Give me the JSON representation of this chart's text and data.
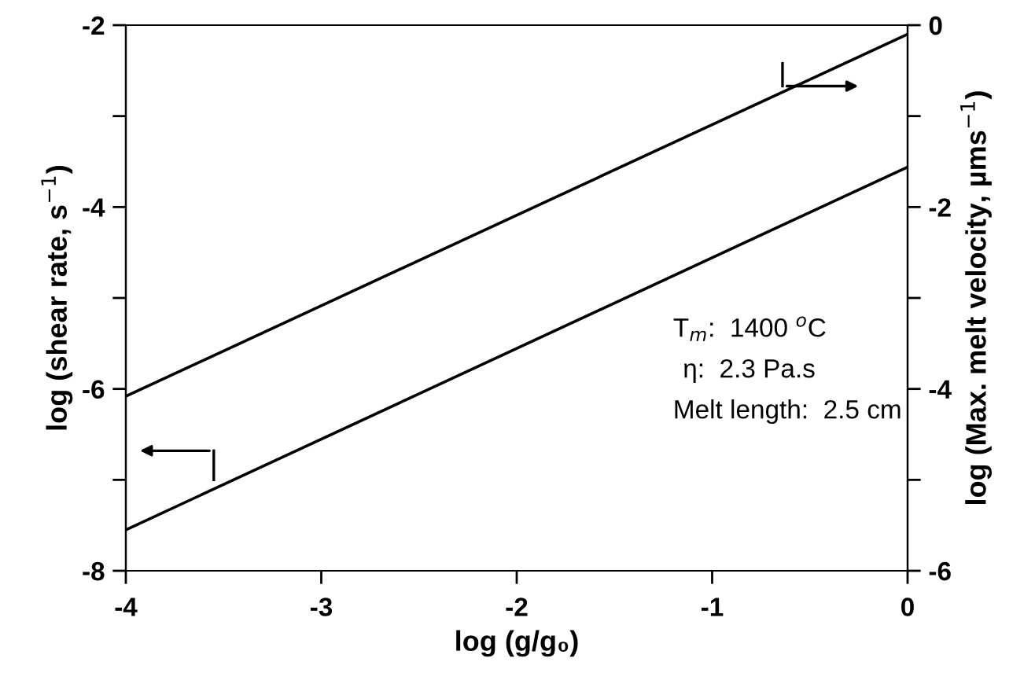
{
  "chart_data": {
    "type": "line",
    "xlabel": "log (g/g₀)",
    "ylabel": "log (shear rate, s$^{−1}$)",
    "y2label": "log (Max. melt velocity, µms$^{−1}$)",
    "x": [
      -4,
      0
    ],
    "series": [
      {
        "color": "#000000",
        "values": [
          -7.55,
          -3.56
        ]
      },
      {
        "color": "#000000",
        "values": [
          -4.08,
          -0.1
        ],
        "axis": "y2"
      }
    ],
    "xlim": [
      -4,
      0
    ],
    "xticks": [
      -4,
      -3,
      -2,
      -1,
      0
    ],
    "ylim": [
      -8,
      -2
    ],
    "yticks": [
      -8,
      -6,
      -4,
      -2
    ],
    "y2lim": [
      -6,
      0
    ],
    "y2ticks": [
      -6,
      -4,
      -2,
      0
    ],
    "annotations": [
      "T$_{m}$:  1400 $^{o}$C",
      "η:  2.3 Pa.s",
      "Melt length:  2.5 cm"
    ],
    "grid": false,
    "legend": false,
    "marker": "none",
    "line_style": "solid"
  }
}
